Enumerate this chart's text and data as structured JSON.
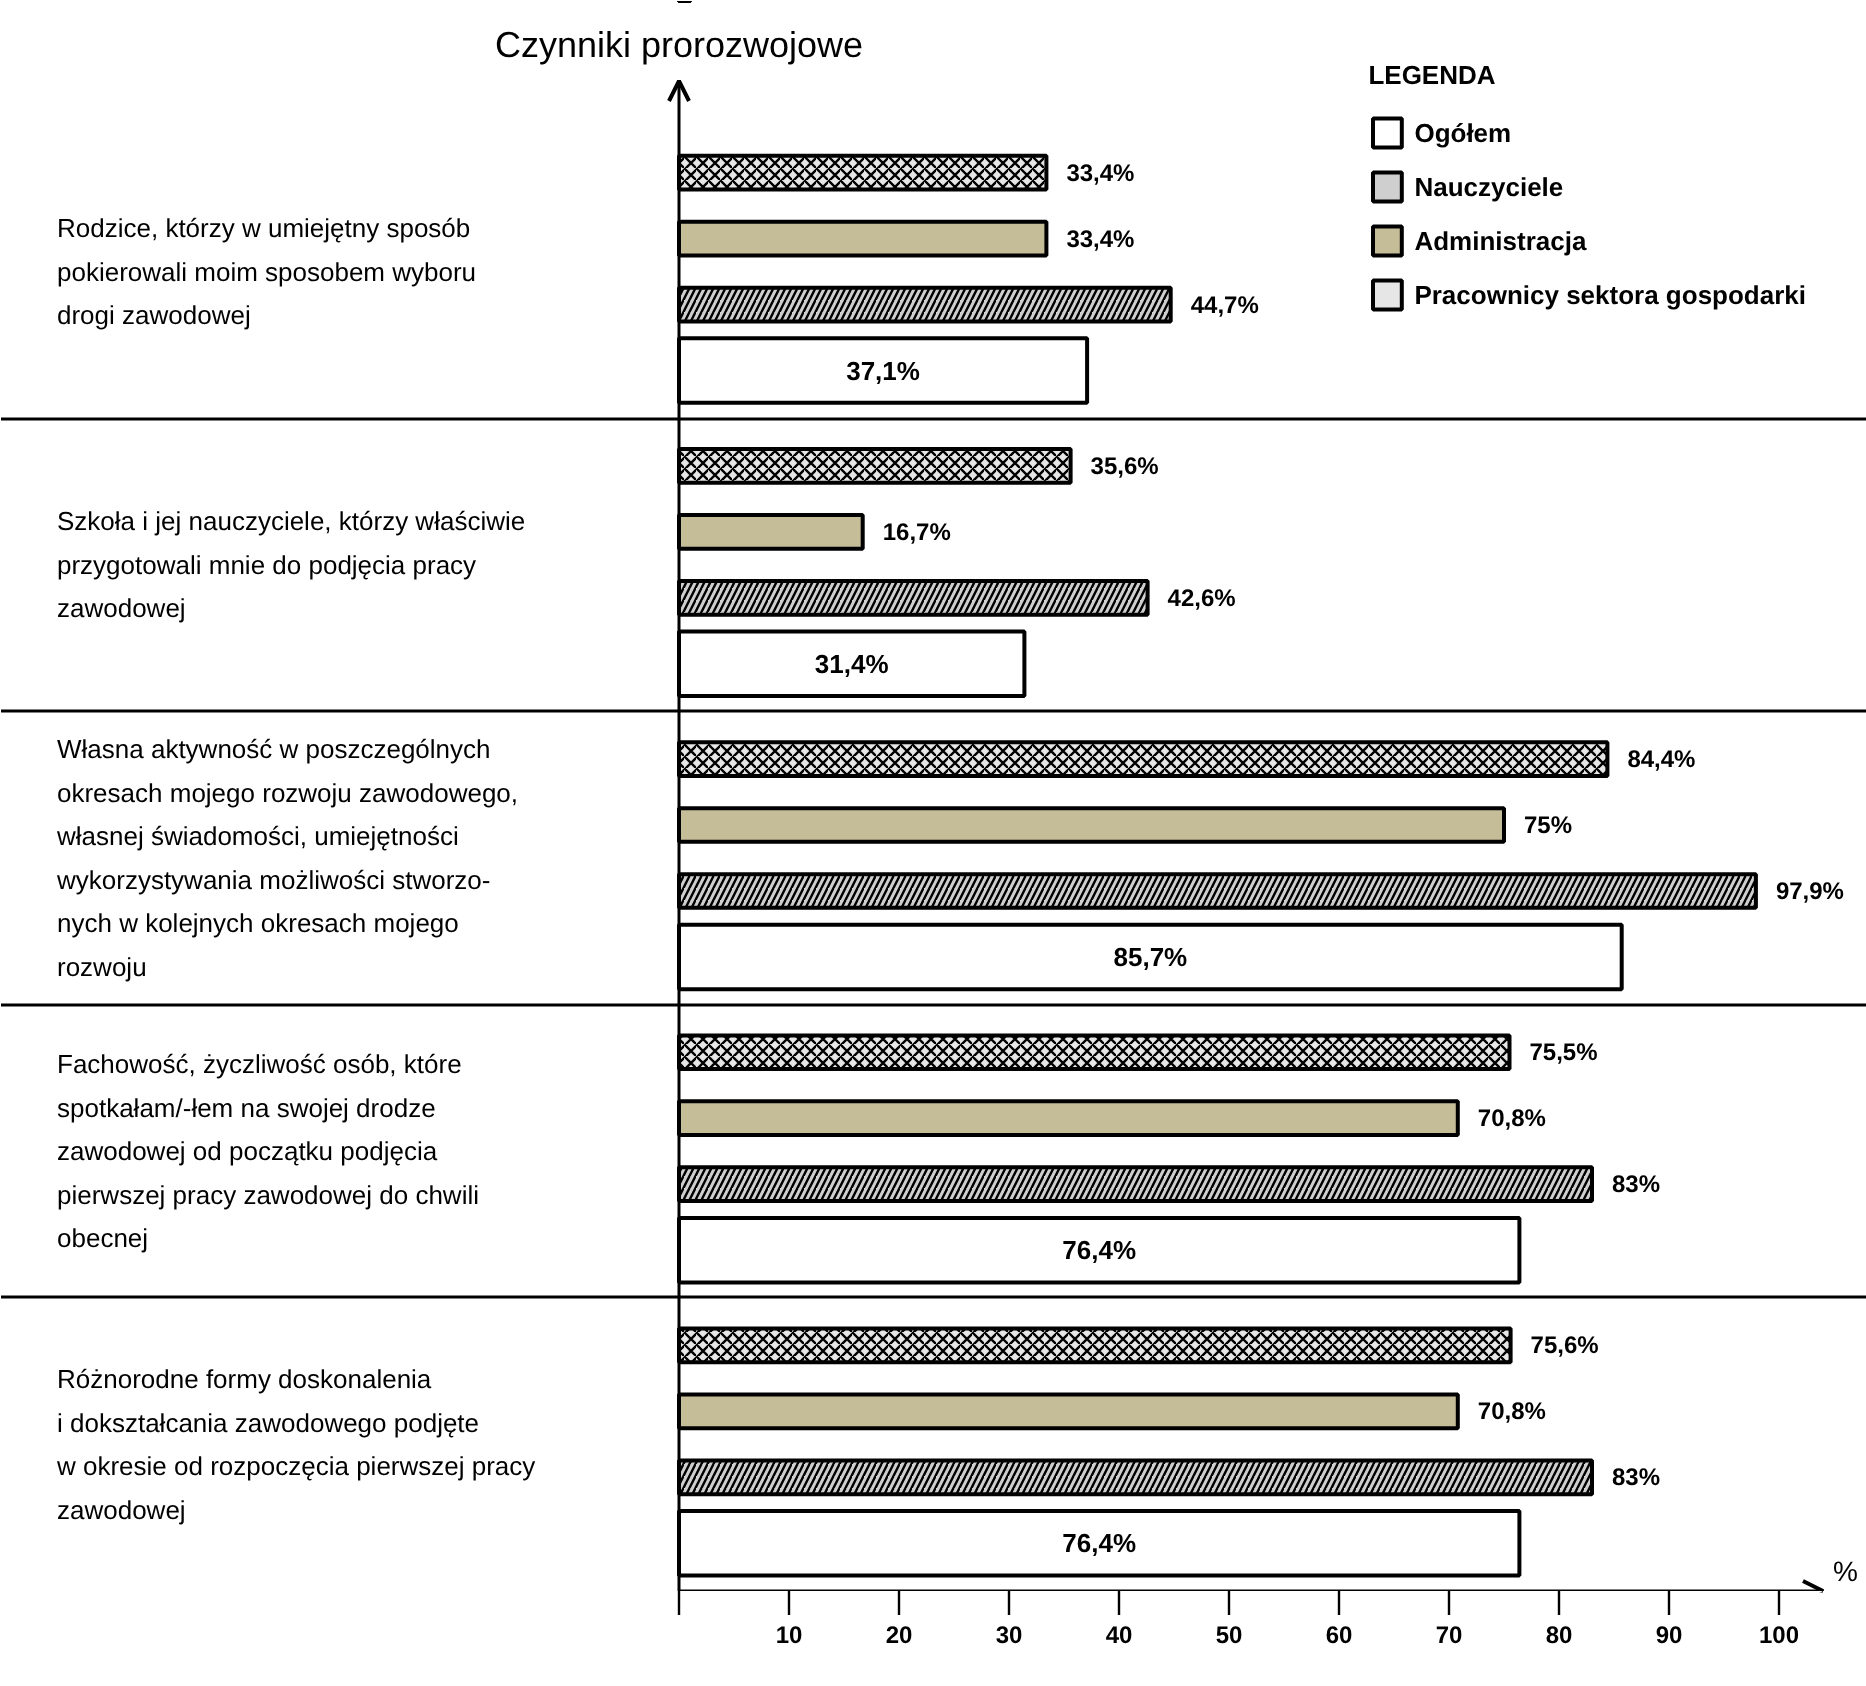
{
  "chart_data": {
    "type": "bar",
    "orientation": "horizontal",
    "ylabel": "Czynniki prorozwojowe",
    "xlabel": "%",
    "legend_title": "LEGENDA",
    "legend": "top right",
    "grid": "y",
    "categories": [
      "Rodzice, którzy w umiejętny sposób\npokierowali moim sposobem wyboru\ndrogi zawodowej",
      "Szkoła i jej nauczyciele, którzy właściwie\nprzygotowali mnie do podjęcia pracy\nzawodowej",
      "Własna aktywność w poszczególnych\nokresach mojego rozwoju zawodowego,\nwłasnej świadomości, umiejętności\nwykorzystywania możliwości stworzo-\nnych w kolejnych okresach mojego\nrozwoju",
      "Fachowość, życzliwość osób, które\nspotkałam/-łem na swojej drodze\nzawodowej od początku podjęcia\npierwszej pracy zawodowej do chwili\nobecnej",
      "Różnorodne formy doskonalenia\ni dokształcania zawodowego podjęte\nw okresie od rozpoczęcia pierwszej pracy\nzawodowej"
    ],
    "xlim": [
      0,
      104
    ],
    "xticks": [
      {
        "value": 0,
        "label": null
      },
      10,
      20,
      30,
      40,
      50,
      60,
      70,
      80,
      90,
      100
    ],
    "series": [
      {
        "name": "Ogółem",
        "color": "#ffffff",
        "values": [
          37.1,
          31.4,
          85.7,
          76.4,
          76.4
        ],
        "value_labels": [
          "37,1%",
          "31,4%",
          "85,7%",
          "76,4%",
          "76,4%"
        ]
      },
      {
        "name": "Nauczyciele",
        "color": "#cfcfcf",
        "values": [
          44.7,
          42.6,
          97.9,
          83,
          83
        ],
        "value_labels": [
          "44,7%",
          "42,6%",
          "97,9%",
          "83%",
          "83%"
        ]
      },
      {
        "name": "Administracja",
        "color": "#c4bd97",
        "values": [
          33.4,
          16.7,
          75,
          70.8,
          70.8
        ],
        "value_labels": [
          "33,4%",
          "16,7%",
          "75%",
          "70,8%",
          "70,8%"
        ]
      },
      {
        "name": "Pracownicy sektora gospodarki",
        "color": "#e6e6e6",
        "values": [
          33.4,
          35.6,
          84.4,
          75.5,
          75.6
        ],
        "value_labels": [
          "33,4%",
          "35,6%",
          "84,4%",
          "75,5%",
          "75,6%"
        ]
      }
    ]
  }
}
